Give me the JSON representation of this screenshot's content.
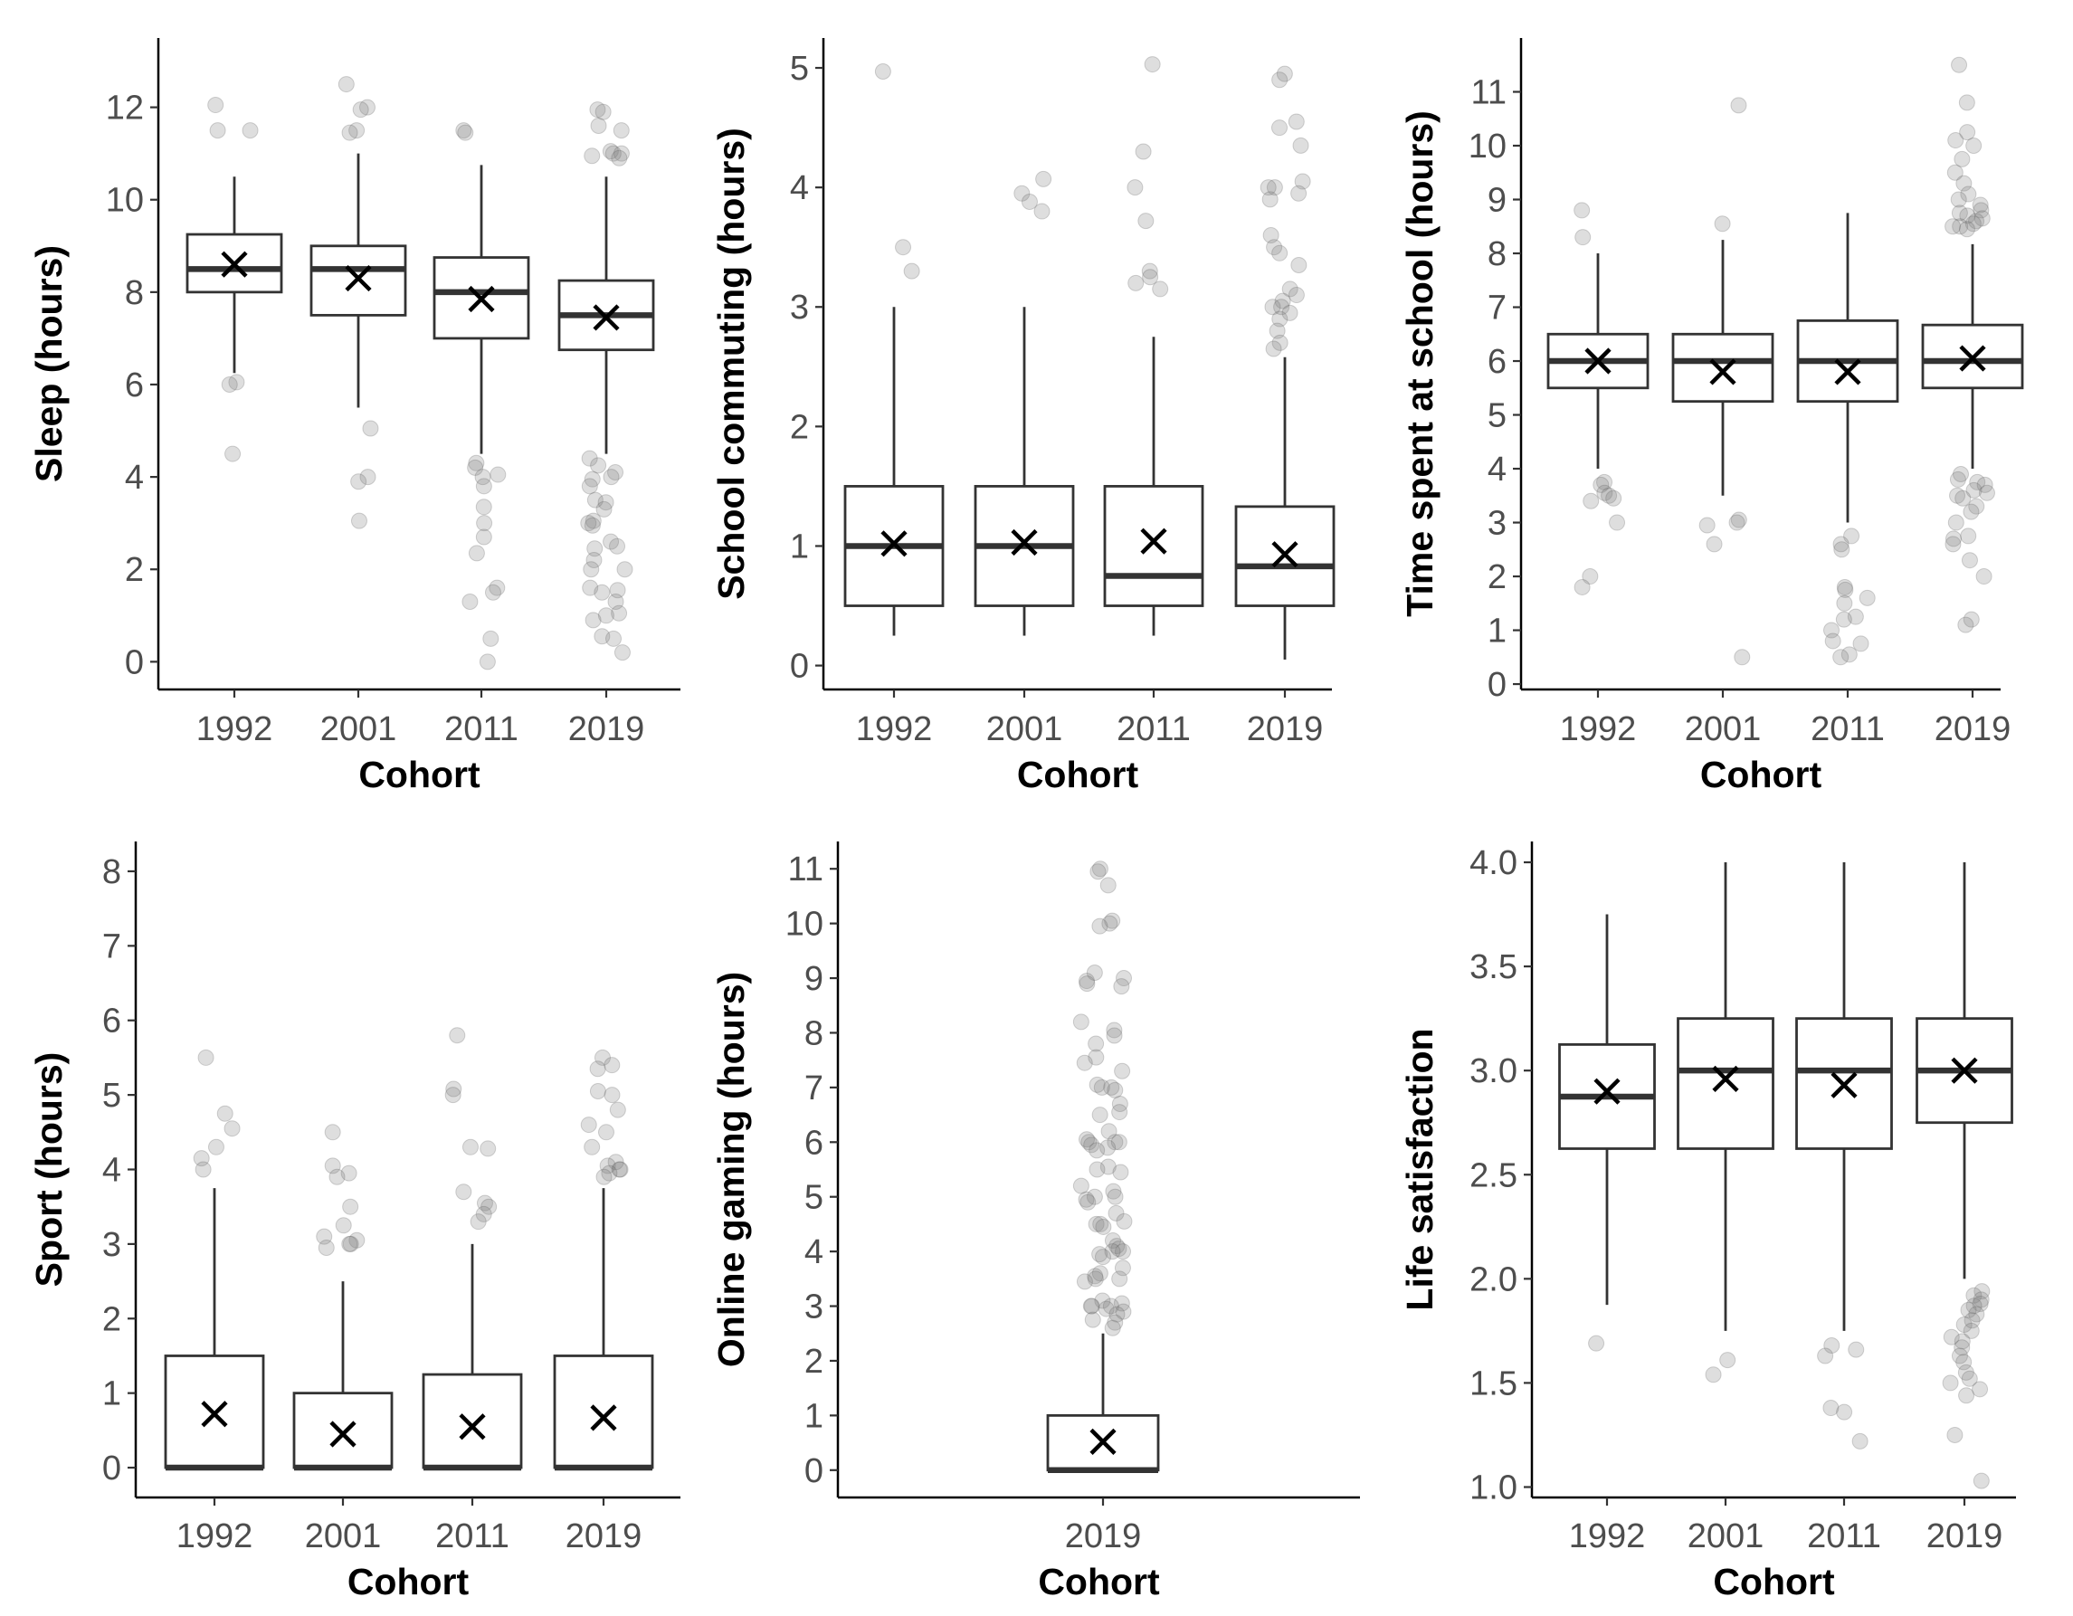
{
  "figure": {
    "colors": {
      "outlier": "#9a9a9a",
      "box": "#333333",
      "mean": "#000000",
      "tick_text": "#4d4d4d",
      "title_text": "#000000"
    }
  },
  "chart_data": [
    {
      "type": "boxplot",
      "title": "",
      "xlabel": "Cohort",
      "ylabel": "Sleep (hours)",
      "ylim": [
        -0.6,
        13.5
      ],
      "yticks": [
        0,
        2,
        4,
        6,
        8,
        10,
        12
      ],
      "ytick_labels": [
        "0",
        "2",
        "4",
        "6",
        "8",
        "10",
        "12"
      ],
      "categories": [
        "1992",
        "2001",
        "2011",
        "2019"
      ],
      "boxes": [
        {
          "cohort": "1992",
          "lower_whisker": 6.25,
          "q1": 8.0,
          "median": 8.5,
          "q3": 9.25,
          "upper_whisker": 10.5,
          "mean": 8.6
        },
        {
          "cohort": "2001",
          "lower_whisker": 5.5,
          "q1": 7.5,
          "median": 8.5,
          "q3": 9.0,
          "upper_whisker": 11.0,
          "mean": 8.3
        },
        {
          "cohort": "2011",
          "lower_whisker": 4.5,
          "q1": 7.0,
          "median": 8.0,
          "q3": 8.75,
          "upper_whisker": 10.75,
          "mean": 7.85
        },
        {
          "cohort": "2019",
          "lower_whisker": 4.5,
          "q1": 6.75,
          "median": 7.5,
          "q3": 8.25,
          "upper_whisker": 10.5,
          "mean": 7.45
        }
      ],
      "outliers": [
        [
          12.05,
          11.5,
          11.5,
          6.05,
          6.0,
          4.5
        ],
        [
          12.5,
          12.0,
          11.95,
          11.5,
          11.45,
          5.05,
          4.0,
          3.9,
          3.05
        ],
        [
          11.5,
          11.45,
          4.3,
          4.2,
          4.05,
          4.0,
          3.8,
          3.35,
          3.0,
          2.7,
          2.35,
          1.6,
          1.5,
          1.3,
          0.5,
          0.0
        ],
        [
          11.95,
          11.9,
          11.6,
          11.5,
          11.05,
          11.0,
          11.0,
          10.95,
          10.9,
          4.4,
          4.25,
          4.1,
          4.0,
          3.95,
          3.8,
          3.5,
          3.45,
          3.3,
          3.05,
          3.0,
          2.95,
          2.6,
          2.5,
          2.45,
          2.2,
          2.0,
          2.0,
          1.6,
          1.55,
          1.5,
          1.3,
          1.05,
          1.0,
          0.9,
          0.55,
          0.5,
          0.2
        ]
      ]
    },
    {
      "type": "boxplot",
      "title": "",
      "xlabel": "Cohort",
      "ylabel": "School commuting (hours)",
      "ylim": [
        -0.2,
        5.25
      ],
      "yticks": [
        0,
        1,
        2,
        3,
        4,
        5
      ],
      "ytick_labels": [
        "0",
        "1",
        "2",
        "3",
        "4",
        "5"
      ],
      "categories": [
        "1992",
        "2001",
        "2011",
        "2019"
      ],
      "boxes": [
        {
          "cohort": "1992",
          "lower_whisker": 0.25,
          "q1": 0.5,
          "median": 1.0,
          "q3": 1.5,
          "upper_whisker": 3.0,
          "mean": 1.02
        },
        {
          "cohort": "2001",
          "lower_whisker": 0.25,
          "q1": 0.5,
          "median": 1.0,
          "q3": 1.5,
          "upper_whisker": 3.0,
          "mean": 1.03
        },
        {
          "cohort": "2011",
          "lower_whisker": 0.25,
          "q1": 0.5,
          "median": 0.75,
          "q3": 1.5,
          "upper_whisker": 2.75,
          "mean": 1.04
        },
        {
          "cohort": "2019",
          "lower_whisker": 0.05,
          "q1": 0.5,
          "median": 0.83,
          "q3": 1.33,
          "upper_whisker": 2.58,
          "mean": 0.93
        }
      ],
      "outliers": [
        [
          4.97,
          3.5,
          3.3
        ],
        [
          4.07,
          3.95,
          3.88,
          3.8
        ],
        [
          5.03,
          4.3,
          4.0,
          3.72,
          3.3,
          3.25,
          3.2,
          3.15
        ],
        [
          4.95,
          4.9,
          4.55,
          4.5,
          4.35,
          4.05,
          4.0,
          4.0,
          3.95,
          3.9,
          3.6,
          3.5,
          3.45,
          3.35,
          3.15,
          3.1,
          3.05,
          3.0,
          3.0,
          2.95,
          2.9,
          2.8,
          2.7,
          2.65
        ]
      ]
    },
    {
      "type": "boxplot",
      "title": "",
      "xlabel": "Cohort",
      "ylabel": "Time spent at school (hours)",
      "ylim": [
        -0.1,
        12.0
      ],
      "yticks": [
        0,
        1,
        2,
        3,
        4,
        5,
        6,
        7,
        8,
        9,
        10,
        11
      ],
      "ytick_labels": [
        "0",
        "1",
        "2",
        "3",
        "4",
        "5",
        "6",
        "7",
        "8",
        "9",
        "10",
        "11"
      ],
      "categories": [
        "1992",
        "2001",
        "2011",
        "2019"
      ],
      "boxes": [
        {
          "cohort": "1992",
          "lower_whisker": 4.0,
          "q1": 5.5,
          "median": 6.0,
          "q3": 6.5,
          "upper_whisker": 8.0,
          "mean": 6.0
        },
        {
          "cohort": "2001",
          "lower_whisker": 3.5,
          "q1": 5.25,
          "median": 6.0,
          "q3": 6.5,
          "upper_whisker": 8.25,
          "mean": 5.8
        },
        {
          "cohort": "2011",
          "lower_whisker": 3.0,
          "q1": 5.25,
          "median": 6.0,
          "q3": 6.75,
          "upper_whisker": 8.75,
          "mean": 5.8
        },
        {
          "cohort": "2019",
          "lower_whisker": 4.0,
          "q1": 5.5,
          "median": 6.0,
          "q3": 6.67,
          "upper_whisker": 8.17,
          "mean": 6.05
        }
      ],
      "outliers": [
        [
          8.8,
          8.3,
          3.75,
          3.7,
          3.55,
          3.5,
          3.45,
          3.4,
          3.0,
          2.0,
          1.8
        ],
        [
          10.75,
          8.55,
          3.05,
          3.0,
          2.95,
          2.6,
          0.5
        ],
        [
          2.75,
          2.6,
          2.5,
          1.8,
          1.75,
          1.6,
          1.5,
          1.25,
          1.2,
          1.0,
          0.8,
          0.75,
          0.55,
          0.5
        ],
        [
          11.5,
          10.8,
          10.25,
          10.1,
          10.0,
          9.75,
          9.5,
          9.3,
          9.1,
          9.0,
          8.9,
          8.8,
          8.75,
          8.7,
          8.65,
          8.6,
          8.55,
          8.5,
          8.5,
          8.45,
          3.9,
          3.8,
          3.75,
          3.7,
          3.6,
          3.55,
          3.5,
          3.45,
          3.3,
          3.2,
          3.0,
          2.75,
          2.7,
          2.6,
          2.3,
          2.0,
          1.2,
          1.1
        ]
      ]
    },
    {
      "type": "boxplot",
      "title": "",
      "xlabel": "Cohort",
      "ylabel": "Sport (hours)",
      "ylim": [
        -0.4,
        8.4
      ],
      "yticks": [
        0,
        1,
        2,
        3,
        4,
        5,
        6,
        7,
        8
      ],
      "ytick_labels": [
        "0",
        "1",
        "2",
        "3",
        "4",
        "5",
        "6",
        "7",
        "8"
      ],
      "categories": [
        "1992",
        "2001",
        "2011",
        "2019"
      ],
      "boxes": [
        {
          "cohort": "1992",
          "lower_whisker": 0,
          "q1": 0,
          "median": 0,
          "q3": 1.5,
          "upper_whisker": 3.75,
          "mean": 0.72
        },
        {
          "cohort": "2001",
          "lower_whisker": 0,
          "q1": 0,
          "median": 0,
          "q3": 1.0,
          "upper_whisker": 2.5,
          "mean": 0.45
        },
        {
          "cohort": "2011",
          "lower_whisker": 0,
          "q1": 0,
          "median": 0,
          "q3": 1.25,
          "upper_whisker": 3.0,
          "mean": 0.55
        },
        {
          "cohort": "2019",
          "lower_whisker": 0,
          "q1": 0,
          "median": 0,
          "q3": 1.5,
          "upper_whisker": 3.75,
          "mean": 0.67
        }
      ],
      "outliers": [
        [
          5.5,
          4.75,
          4.55,
          4.3,
          4.15,
          4.0
        ],
        [
          4.5,
          4.05,
          3.95,
          3.9,
          3.5,
          3.25,
          3.1,
          3.05,
          3.0,
          3.0,
          2.95
        ],
        [
          5.8,
          5.08,
          5.0,
          4.3,
          4.28,
          3.7,
          3.55,
          3.5,
          3.4,
          3.3
        ],
        [
          5.5,
          5.4,
          5.35,
          5.05,
          5.0,
          4.8,
          4.6,
          4.5,
          4.3,
          4.1,
          4.05,
          4.0,
          4.0,
          3.95,
          3.9
        ]
      ]
    },
    {
      "type": "boxplot",
      "title": "",
      "xlabel": "Cohort",
      "ylabel": "Online gaming (hours)",
      "ylim": [
        -0.5,
        11.5
      ],
      "yticks": [
        0,
        1,
        2,
        3,
        4,
        5,
        6,
        7,
        8,
        9,
        10,
        11
      ],
      "ytick_labels": [
        "0",
        "1",
        "2",
        "3",
        "4",
        "5",
        "6",
        "7",
        "8",
        "9",
        "10",
        "11"
      ],
      "categories": [
        "2019"
      ],
      "boxes": [
        {
          "cohort": "2019",
          "lower_whisker": 0,
          "q1": 0,
          "median": 0,
          "q3": 1.0,
          "upper_whisker": 2.5,
          "mean": 0.52
        }
      ],
      "outliers": [
        [
          11.0,
          10.95,
          10.7,
          10.05,
          10.0,
          9.95,
          9.1,
          9.0,
          8.95,
          8.9,
          8.85,
          8.2,
          8.05,
          7.95,
          7.8,
          7.55,
          7.45,
          7.3,
          7.05,
          7.0,
          7.0,
          6.95,
          6.7,
          6.55,
          6.5,
          6.2,
          6.05,
          6.0,
          6.0,
          6.0,
          5.95,
          5.9,
          5.85,
          5.55,
          5.5,
          5.45,
          5.2,
          5.1,
          5.0,
          5.0,
          4.95,
          4.9,
          4.7,
          4.55,
          4.5,
          4.5,
          4.45,
          4.2,
          4.1,
          4.05,
          4.0,
          4.0,
          3.95,
          3.9,
          3.7,
          3.6,
          3.55,
          3.5,
          3.5,
          3.45,
          3.1,
          3.05,
          3.0,
          3.0,
          3.0,
          2.95,
          2.9,
          2.85,
          2.75,
          2.7,
          2.6
        ]
      ]
    },
    {
      "type": "boxplot",
      "title": "",
      "xlabel": "Cohort",
      "ylabel": "Life satisfaction",
      "ylim": [
        0.95,
        4.1
      ],
      "yticks": [
        1.0,
        1.5,
        2.0,
        2.5,
        3.0,
        3.5,
        4.0
      ],
      "ytick_labels": [
        "1.0",
        "1.5",
        "2.0",
        "2.5",
        "3.0",
        "3.5",
        "4.0"
      ],
      "categories": [
        "1992",
        "2001",
        "2011",
        "2019"
      ],
      "boxes": [
        {
          "cohort": "1992",
          "lower_whisker": 1.875,
          "q1": 2.625,
          "median": 2.875,
          "q3": 3.125,
          "upper_whisker": 3.75,
          "mean": 2.9
        },
        {
          "cohort": "2001",
          "lower_whisker": 1.75,
          "q1": 2.625,
          "median": 3.0,
          "q3": 3.25,
          "upper_whisker": 4.0,
          "mean": 2.96
        },
        {
          "cohort": "2011",
          "lower_whisker": 1.75,
          "q1": 2.625,
          "median": 3.0,
          "q3": 3.25,
          "upper_whisker": 4.0,
          "mean": 2.93
        },
        {
          "cohort": "2019",
          "lower_whisker": 2.0,
          "q1": 2.75,
          "median": 3.0,
          "q3": 3.25,
          "upper_whisker": 4.0,
          "mean": 3.0
        }
      ],
      "outliers": [
        [
          1.69
        ],
        [
          1.61,
          1.54
        ],
        [
          1.68,
          1.66,
          1.63,
          1.38,
          1.36,
          1.22
        ],
        [
          1.94,
          1.92,
          1.9,
          1.88,
          1.87,
          1.85,
          1.83,
          1.8,
          1.78,
          1.75,
          1.72,
          1.7,
          1.67,
          1.63,
          1.6,
          1.55,
          1.52,
          1.5,
          1.47,
          1.44,
          1.25,
          1.03
        ]
      ]
    }
  ]
}
